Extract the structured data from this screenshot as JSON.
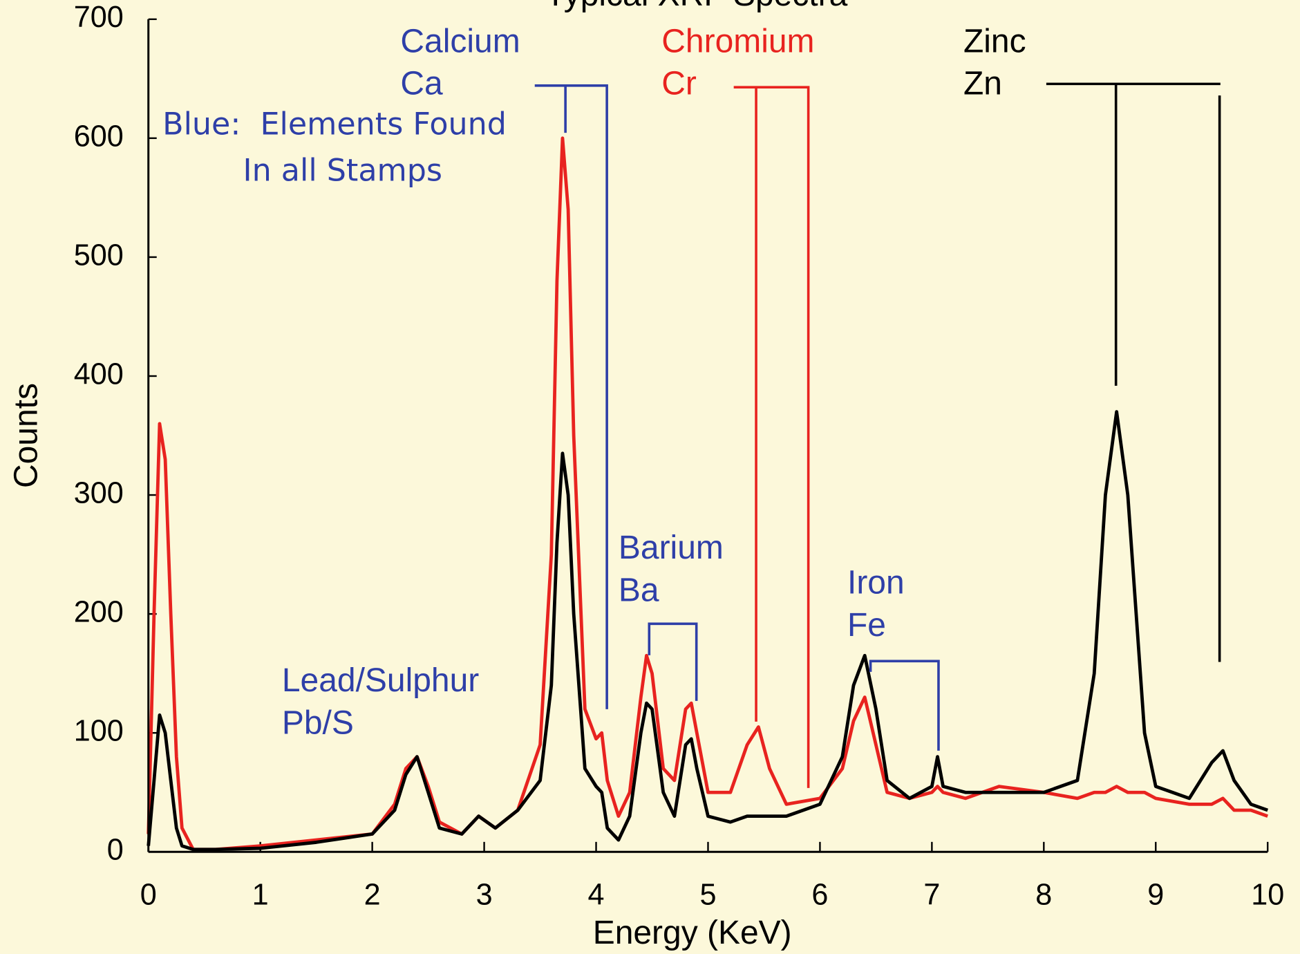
{
  "chart_data": {
    "type": "line",
    "title": "Typical XRF Spectra",
    "x_label": "Energy (KeV)",
    "y_label": "Counts",
    "x": [
      0,
      0.05,
      0.1,
      0.15,
      0.2,
      0.25,
      0.3,
      0.4,
      0.6,
      1,
      1.5,
      2,
      2.2,
      2.3,
      2.4,
      2.5,
      2.6,
      2.8,
      2.95,
      3.1,
      3.3,
      3.5,
      3.6,
      3.65,
      3.7,
      3.75,
      3.8,
      3.9,
      4.0,
      4.05,
      4.1,
      4.2,
      4.3,
      4.4,
      4.45,
      4.5,
      4.6,
      4.7,
      4.8,
      4.85,
      4.9,
      5.0,
      5.2,
      5.35,
      5.45,
      5.55,
      5.7,
      6.0,
      6.2,
      6.3,
      6.4,
      6.5,
      6.6,
      6.8,
      7.0,
      7.05,
      7.1,
      7.3,
      7.6,
      8.0,
      8.3,
      8.45,
      8.55,
      8.65,
      8.75,
      8.9,
      9.0,
      9.3,
      9.5,
      9.6,
      9.7,
      9.85,
      10
    ],
    "series": [
      {
        "color": "#e8231f",
        "values": [
          15,
          200,
          360,
          330,
          200,
          80,
          20,
          2,
          2,
          5,
          10,
          15,
          40,
          70,
          80,
          55,
          25,
          15,
          30,
          20,
          35,
          90,
          250,
          480,
          600,
          540,
          350,
          120,
          95,
          100,
          60,
          30,
          50,
          130,
          165,
          150,
          70,
          60,
          120,
          125,
          100,
          50,
          50,
          90,
          105,
          70,
          40,
          45,
          70,
          110,
          130,
          90,
          50,
          45,
          50,
          55,
          50,
          45,
          55,
          50,
          45,
          50,
          50,
          55,
          50,
          50,
          45,
          40,
          40,
          45,
          35,
          35,
          30
        ]
      },
      {
        "color": "#000000",
        "values": [
          5,
          60,
          115,
          100,
          60,
          20,
          5,
          2,
          2,
          3,
          8,
          15,
          35,
          65,
          80,
          50,
          20,
          15,
          30,
          20,
          35,
          60,
          140,
          260,
          335,
          300,
          200,
          70,
          55,
          50,
          20,
          10,
          30,
          100,
          125,
          120,
          50,
          30,
          90,
          95,
          70,
          30,
          25,
          30,
          30,
          30,
          30,
          40,
          80,
          140,
          165,
          120,
          60,
          45,
          55,
          80,
          55,
          50,
          50,
          50,
          60,
          150,
          300,
          370,
          300,
          100,
          55,
          45,
          75,
          85,
          60,
          40,
          35
        ]
      }
    ],
    "xlim": [
      0,
      10
    ],
    "xticks": [
      0,
      1,
      2,
      3,
      4,
      5,
      6,
      7,
      8,
      9,
      10
    ],
    "ylim": [
      0,
      700
    ],
    "yticks": [
      0,
      100,
      200,
      300,
      400,
      500,
      600,
      700
    ],
    "annotations": [
      {
        "text": "Calcium",
        "color": "#2e3fa8"
      },
      {
        "text": "Ca",
        "color": "#2e3fa8"
      },
      {
        "text": "Blue:  Elements Found",
        "color": "#2e3fa8"
      },
      {
        "text": "In all Stamps",
        "color": "#2e3fa8"
      },
      {
        "text": "Chromium",
        "color": "#e8231f"
      },
      {
        "text": "Cr",
        "color": "#e8231f"
      },
      {
        "text": "Zinc",
        "color": "#000000"
      },
      {
        "text": "Zn",
        "color": "#000000"
      },
      {
        "text": "Barium",
        "color": "#2e3fa8"
      },
      {
        "text": "Ba",
        "color": "#2e3fa8"
      },
      {
        "text": "Lead/Sulphur",
        "color": "#2e3fa8"
      },
      {
        "text": "Pb/S",
        "color": "#2e3fa8"
      },
      {
        "text": "Iron",
        "color": "#2e3fa8"
      },
      {
        "text": "Fe",
        "color": "#2e3fa8"
      }
    ]
  }
}
